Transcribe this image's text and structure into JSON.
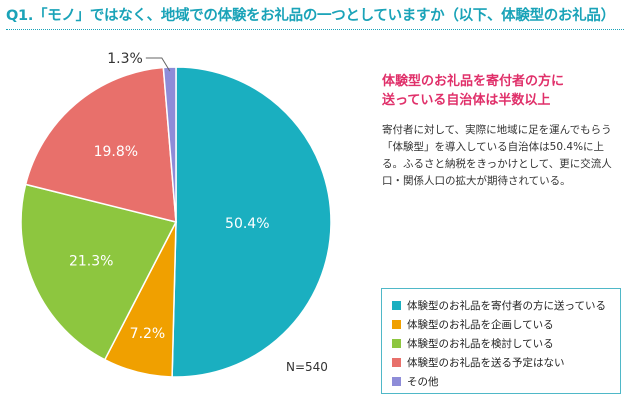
{
  "title": "Q1.「モノ」ではなく、地域での体験をお礼品の一つとしていますか（以下、体験型のお礼品）",
  "headline": [
    "体験型のお礼品を寄付者の方に",
    "送っている自治体は半数以上"
  ],
  "body": "寄付者に対して、実際に地域に足を運んでもらう「体験型」を導入している自治体は50.4%に上る。ふるさと納税をきっかけとして、更に交流人口・関係人口の拡大が期待されている。",
  "sample_size": "N=540",
  "chart_data": {
    "type": "pie",
    "categories": [
      "体験型のお礼品を寄付者の方に送っている",
      "体験型のお礼品を企画している",
      "体験型のお礼品を検討している",
      "体験型のお礼品を送る予定はない",
      "その他"
    ],
    "values": [
      50.4,
      7.2,
      21.3,
      19.8,
      1.3
    ],
    "labels": [
      "50.4%",
      "7.2%",
      "21.3%",
      "19.8%",
      "1.3%"
    ],
    "colors": [
      "#1aafc0",
      "#f0a000",
      "#8dc63f",
      "#e8706b",
      "#8e8cd8"
    ],
    "start": "12 o'clock, clockwise",
    "legend_position": "bottom-right"
  }
}
